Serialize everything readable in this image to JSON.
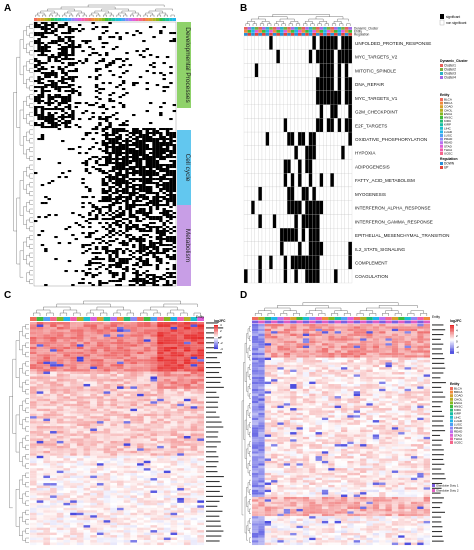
{
  "chart_data": [
    {
      "panel": "A",
      "type": "heatmap",
      "title": "",
      "row_group_labels": [
        "Developmental Processes",
        "Cell cycle",
        "Metabolism"
      ],
      "row_group_colors": [
        "#8fd26a",
        "#62c7ef",
        "#c89ee6"
      ],
      "cell_colors": {
        "on": "#000000",
        "off": "#ffffff"
      }
    },
    {
      "panel": "B",
      "type": "heatmap",
      "title": "",
      "annotation_tracks": [
        "Dynamic_Cluster",
        "Entity",
        "Regulation"
      ],
      "rows": [
        "UNFOLDED_PROTEIN_RESPONSE",
        "MYC_TARGETS_V2",
        "MITOTIC_SPINDLE",
        "DNA_REPAIR",
        "MYC_TARGETS_V1",
        "G2M_CHECKPOINT",
        "E2F_TARGETS",
        "OXIDATIVE_PHOSPHORYLATION",
        "HYPOXIA",
        "ADIPOGENESIS",
        "FATTY_ACID_METABOLISM",
        "MYOGENESIS",
        "INTERFERON_ALPHA_RESPONSE",
        "INTERFERON_GAMMA_RESPONSE",
        "EPITHELIAL_MESENCHYMAL_TRANSITION",
        "IL2_STAT5_SIGNALING",
        "COMPLEMENT",
        "COAGULATION"
      ],
      "legend": {
        "significance": [
          "significant",
          "non significant"
        ],
        "dynamic_cluster_title": "Dynamic_Cluster",
        "dynamic_cluster_items": [
          "Cluster1",
          "Cluster2",
          "Cluster3",
          "Cluster4"
        ],
        "dynamic_cluster_colors": [
          "#e8615a",
          "#7cae3f",
          "#2db3c6",
          "#a36ce6"
        ],
        "entity_title": "Entity",
        "entity_items": [
          "BLCA",
          "BRCA",
          "COAD",
          "CHOL",
          "ESCA",
          "HNSC",
          "KIRC",
          "KIRP",
          "LIHC",
          "LUAD",
          "LUSC",
          "PRAD",
          "READ",
          "STAD",
          "THCA",
          "UCEC"
        ],
        "entity_colors": [
          "#f06b5c",
          "#f18a3c",
          "#d9a02b",
          "#b5af22",
          "#85b81f",
          "#3fbb3a",
          "#21bd75",
          "#19bfa6",
          "#1cbfcf",
          "#20b5ec",
          "#4fa1f5",
          "#8a88f7",
          "#b872f2",
          "#de5fdc",
          "#f25cad",
          "#f5668a"
        ],
        "regulation_title": "Regulation",
        "regulation_items": [
          "DOWN",
          "UP"
        ],
        "regulation_colors": [
          "#2a8fd6",
          "#e5453b"
        ]
      }
    },
    {
      "panel": "C",
      "type": "heatmap",
      "title": "",
      "legend_title": "log2FC",
      "legend_ticks": [
        "4",
        "2",
        "0",
        "-2",
        "-4"
      ],
      "annotation_title": "Entity",
      "color_scale": [
        "#2b2bd9",
        "#ffffff",
        "#e62626"
      ]
    },
    {
      "panel": "D",
      "type": "heatmap",
      "title": "",
      "legend_title": "log2FC",
      "legend_ticks": [
        "6",
        "4",
        "2",
        "0",
        "-2",
        "-4"
      ],
      "annotation_titles": [
        "Entity",
        "Entity"
      ],
      "entity_items": [
        "BLCA",
        "BRCA",
        "COAD",
        "CHOL",
        "ESCA",
        "HNSC",
        "KIRC",
        "KIRP",
        "LIHC",
        "LUAD",
        "LUSC",
        "PRAD",
        "READ",
        "STAD",
        "THCA",
        "UCEC"
      ],
      "extra_legend_items": [
        "Glandular Duty 1",
        "Glandular Duty 2"
      ],
      "extra_legend_colors": [
        "#7c5de0",
        "#e05cc2"
      ],
      "color_scale": [
        "#2b2bd9",
        "#ffffff",
        "#e62626"
      ]
    }
  ],
  "panel_labels": [
    "A",
    "B",
    "C",
    "D"
  ]
}
